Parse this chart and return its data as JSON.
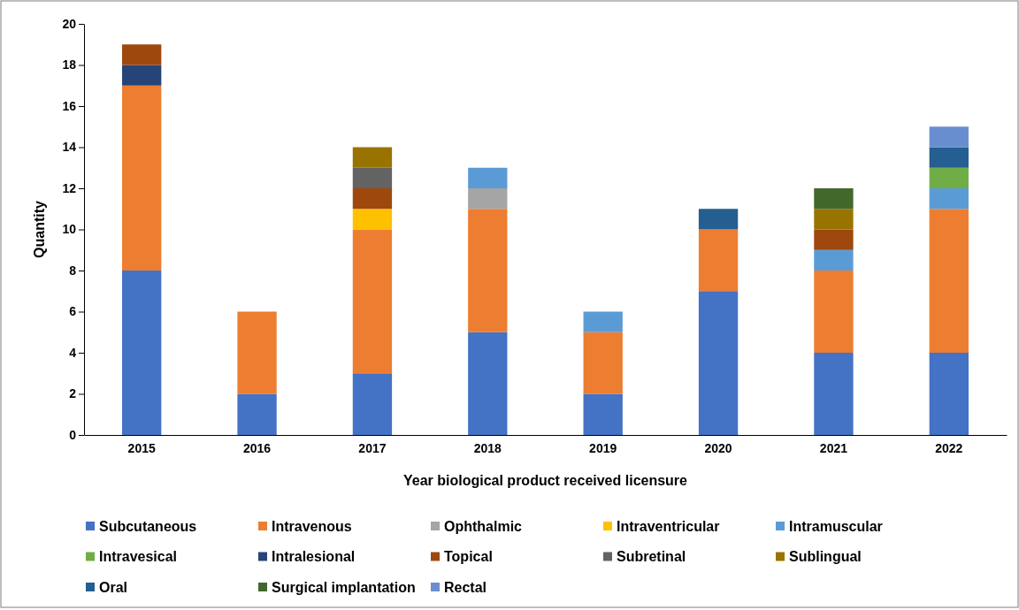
{
  "chart_data": {
    "type": "bar",
    "stacked": true,
    "xlabel": "Year biological product received licensure",
    "ylabel": "Quantity",
    "categories": [
      "2015",
      "2016",
      "2017",
      "2018",
      "2019",
      "2020",
      "2021",
      "2022"
    ],
    "ylim": [
      0,
      20
    ],
    "yticks": [
      0,
      2,
      4,
      6,
      8,
      10,
      12,
      14,
      16,
      18,
      20
    ],
    "grid": false,
    "legend": "bottom",
    "series": [
      {
        "name": "Subcutaneous",
        "color": "#4472c4",
        "values": [
          8,
          2,
          3,
          5,
          2,
          7,
          4,
          4
        ]
      },
      {
        "name": "Intravenous",
        "color": "#ed7d31",
        "values": [
          9,
          4,
          7,
          6,
          3,
          3,
          4,
          7
        ]
      },
      {
        "name": "Ophthalmic",
        "color": "#a5a5a5",
        "values": [
          null,
          null,
          null,
          1,
          null,
          null,
          null,
          null
        ]
      },
      {
        "name": "Intraventricular",
        "color": "#ffc000",
        "values": [
          null,
          null,
          1,
          null,
          null,
          null,
          null,
          null
        ]
      },
      {
        "name": "Intramuscular",
        "color": "#5b9bd5",
        "values": [
          null,
          null,
          null,
          1,
          1,
          null,
          1,
          1
        ]
      },
      {
        "name": "Intravesical",
        "color": "#70ad47",
        "values": [
          null,
          null,
          null,
          null,
          null,
          null,
          null,
          1
        ]
      },
      {
        "name": "Intralesional",
        "color": "#264478",
        "values": [
          1,
          null,
          null,
          null,
          null,
          null,
          null,
          null
        ]
      },
      {
        "name": "Topical",
        "color": "#9e480e",
        "values": [
          1,
          null,
          1,
          null,
          null,
          null,
          1,
          null
        ]
      },
      {
        "name": "Subretinal",
        "color": "#636363",
        "values": [
          null,
          null,
          1,
          null,
          null,
          null,
          null,
          null
        ]
      },
      {
        "name": "Sublingual",
        "color": "#997300",
        "values": [
          null,
          null,
          1,
          null,
          null,
          null,
          1,
          null
        ]
      },
      {
        "name": "Oral",
        "color": "#255e91",
        "values": [
          null,
          null,
          null,
          null,
          null,
          1,
          null,
          1
        ]
      },
      {
        "name": "Surgical implantation",
        "color": "#43682b",
        "values": [
          null,
          null,
          null,
          null,
          null,
          null,
          1,
          null
        ]
      },
      {
        "name": "Rectal",
        "color": "#698ed0",
        "values": [
          null,
          null,
          null,
          null,
          null,
          null,
          null,
          1
        ]
      }
    ]
  }
}
